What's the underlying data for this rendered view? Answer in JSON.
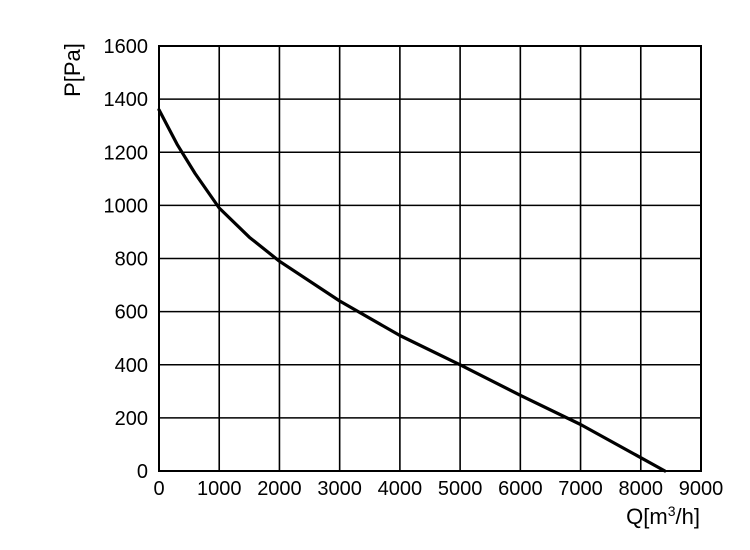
{
  "chart_data": {
    "type": "line",
    "title": "",
    "xlabel_main": "Q[m",
    "xlabel_sup": "3",
    "xlabel_tail": "/h]",
    "ylabel": "P[Pa]",
    "xlim": [
      0,
      9000
    ],
    "ylim": [
      0,
      1600
    ],
    "xticks": [
      0,
      1000,
      2000,
      3000,
      4000,
      5000,
      6000,
      7000,
      8000,
      9000
    ],
    "yticks": [
      0,
      200,
      400,
      600,
      800,
      1000,
      1200,
      1400,
      1600
    ],
    "grid": true,
    "series": [
      {
        "x": [
          0,
          300,
          600,
          1000,
          1500,
          2000,
          3000,
          4000,
          5000,
          6000,
          7000,
          8000,
          8400
        ],
        "y": [
          1360,
          1230,
          1120,
          990,
          880,
          790,
          640,
          510,
          400,
          285,
          175,
          50,
          0
        ]
      }
    ]
  }
}
